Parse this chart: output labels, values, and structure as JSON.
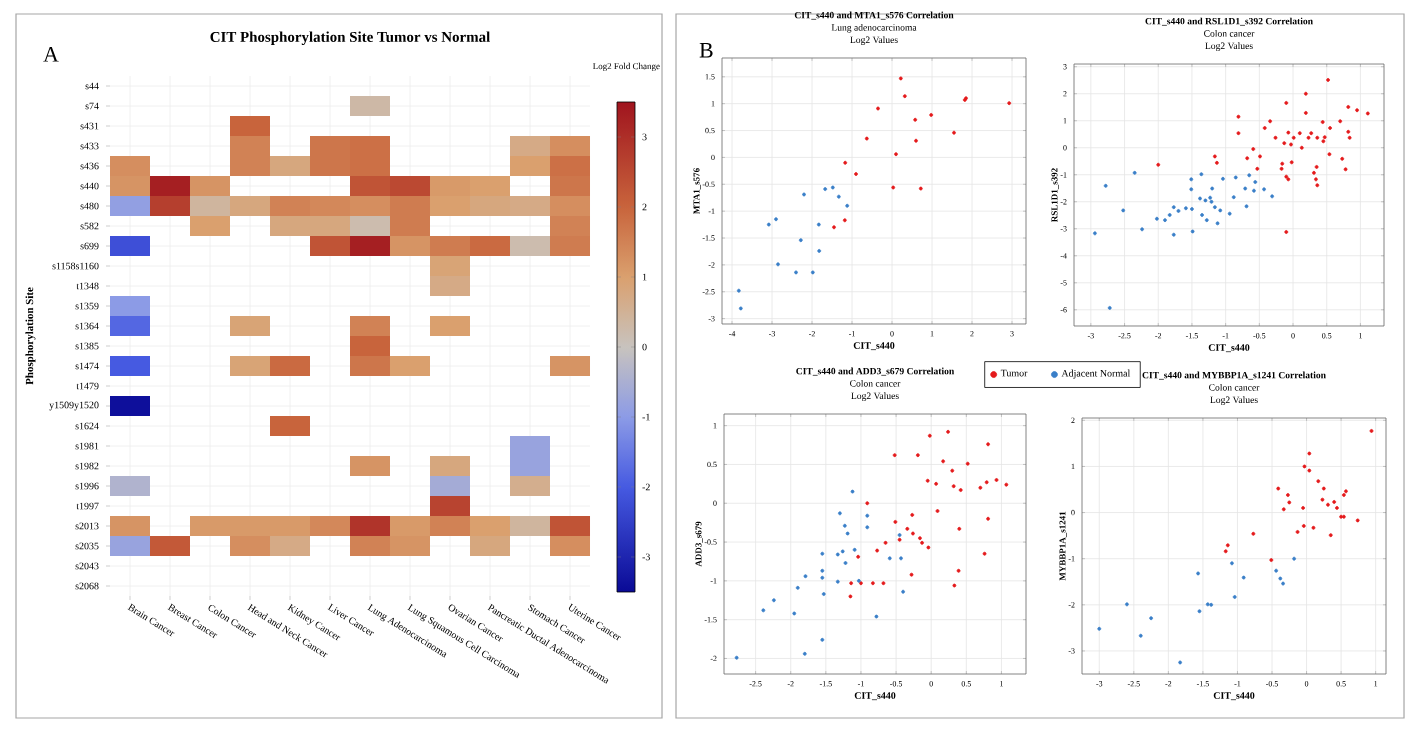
{
  "chart_data": [
    {
      "type": "heatmap",
      "title": "CIT Phosphorylation Site Tumor vs Normal",
      "ylabel": "Phosphorylation Site",
      "clabel": "Log2 Fold Change",
      "annotations": [
        "A"
      ],
      "categories": [
        "Brain Cancer",
        "Breast Cancer",
        "Colon Cancer",
        "Head and Neck Cancer",
        "Kidney Cancer",
        "Liver Cancer",
        "Lung Adenocarcinoma",
        "Lung Squamous Cell Carcinoma",
        "Ovarian Cancer",
        "Pancreatic Ductal Adenocarcinoma",
        "Stomach Cancer",
        "Uterine Cancer"
      ],
      "y_categories": [
        "s44",
        "s74",
        "s431",
        "s433",
        "s436",
        "s440",
        "s480",
        "s582",
        "s699",
        "s1158s1160",
        "t1348",
        "s1359",
        "s1364",
        "s1385",
        "s1474",
        "t1479",
        "y1509y1520",
        "s1624",
        "s1981",
        "s1982",
        "s1996",
        "t1997",
        "s2013",
        "s2035",
        "s2043",
        "s2068"
      ],
      "cells": [
        [
          null,
          null,
          null,
          null,
          null,
          null,
          null,
          null,
          null,
          null,
          null,
          null
        ],
        [
          null,
          null,
          null,
          null,
          null,
          null,
          0.3,
          null,
          null,
          null,
          null,
          null
        ],
        [
          null,
          null,
          null,
          2.0,
          null,
          null,
          null,
          null,
          null,
          null,
          null,
          null
        ],
        [
          null,
          null,
          null,
          1.5,
          null,
          1.7,
          1.8,
          null,
          null,
          null,
          0.7,
          1.3
        ],
        [
          1.3,
          null,
          null,
          1.5,
          0.8,
          1.7,
          1.8,
          null,
          null,
          null,
          1.0,
          1.8
        ],
        [
          1.2,
          3.3,
          1.2,
          null,
          null,
          null,
          2.3,
          2.5,
          1.1,
          1.0,
          null,
          1.7
        ],
        [
          -0.9,
          2.7,
          0.4,
          0.8,
          1.5,
          1.4,
          1.3,
          1.6,
          1.0,
          0.8,
          0.7,
          1.3
        ],
        [
          null,
          null,
          1.0,
          null,
          0.8,
          0.8,
          0.2,
          1.6,
          null,
          null,
          null,
          1.5
        ],
        [
          -2.2,
          null,
          null,
          null,
          null,
          2.3,
          3.3,
          1.2,
          1.6,
          1.9,
          0.2,
          1.6
        ],
        [
          null,
          null,
          null,
          null,
          null,
          null,
          null,
          null,
          0.9,
          null,
          null,
          null
        ],
        [
          null,
          null,
          null,
          null,
          null,
          null,
          null,
          null,
          0.7,
          null,
          null,
          null
        ],
        [
          -1.0,
          null,
          null,
          null,
          null,
          null,
          null,
          null,
          null,
          null,
          null,
          null
        ],
        [
          -1.8,
          null,
          null,
          0.9,
          null,
          null,
          1.5,
          null,
          1.0,
          null,
          null,
          null
        ],
        [
          null,
          null,
          null,
          null,
          null,
          null,
          2.0,
          null,
          null,
          null,
          null,
          null
        ],
        [
          -2.0,
          null,
          null,
          0.9,
          1.9,
          null,
          1.7,
          1.0,
          null,
          null,
          null,
          1.2
        ],
        [
          null,
          null,
          null,
          null,
          null,
          null,
          null,
          null,
          null,
          null,
          null,
          null
        ],
        [
          -3.4,
          null,
          null,
          null,
          null,
          null,
          null,
          null,
          null,
          null,
          null,
          null
        ],
        [
          null,
          null,
          null,
          null,
          2.0,
          null,
          null,
          null,
          null,
          null,
          null,
          null
        ],
        [
          null,
          null,
          null,
          null,
          null,
          null,
          null,
          null,
          null,
          null,
          -0.8,
          null
        ],
        [
          null,
          null,
          null,
          null,
          null,
          null,
          1.2,
          null,
          0.8,
          null,
          -0.8,
          null
        ],
        [
          -0.4,
          null,
          null,
          null,
          null,
          null,
          null,
          null,
          -0.6,
          null,
          0.6,
          null
        ],
        [
          null,
          null,
          null,
          null,
          null,
          null,
          null,
          null,
          2.6,
          null,
          null,
          null
        ],
        [
          1.2,
          null,
          1.1,
          1.1,
          1.1,
          1.4,
          2.9,
          1.1,
          1.5,
          1.0,
          0.4,
          2.3
        ],
        [
          -0.8,
          2.2,
          null,
          1.3,
          0.7,
          null,
          1.5,
          1.2,
          null,
          0.8,
          null,
          1.3
        ],
        [
          null,
          null,
          null,
          null,
          null,
          null,
          null,
          null,
          null,
          null,
          null,
          null
        ],
        [
          null,
          null,
          null,
          null,
          null,
          null,
          null,
          null,
          null,
          null,
          null,
          null
        ]
      ],
      "clim": [
        -3.5,
        3.5
      ],
      "cticks": [
        -3,
        -2,
        -1,
        0,
        1,
        2,
        3
      ],
      "grid": true
    },
    {
      "type": "scatter",
      "title": "CIT_s440 and MTA1_s576 Correlation",
      "subtitle": "Lung adenocarcinoma",
      "annotations": [
        "Log2 Values",
        "B"
      ],
      "xlabel": "CIT_s440",
      "ylabel": "MTA1_s576",
      "xlim": [
        -4.25,
        3.35
      ],
      "ylim": [
        -3.1,
        1.85
      ],
      "xticks": [
        -4,
        -3,
        -2,
        -1,
        0,
        1,
        2,
        3
      ],
      "yticks": [
        -3,
        -2.5,
        -2,
        -1.5,
        -1,
        -0.5,
        0,
        0.5,
        1,
        1.5
      ],
      "grid": true,
      "legend": "bottom",
      "series": [
        {
          "name": "Tumor",
          "color": "#e41a1c",
          "x": [
            0.22,
            0.32,
            -0.35,
            1.85,
            1.82,
            2.93,
            0.58,
            0.98,
            0.6,
            1.55,
            -0.63,
            0.1,
            -1.17,
            -0.9,
            0.03,
            0.72,
            -1.18,
            -1.45
          ],
          "values": [
            1.47,
            1.14,
            0.91,
            1.1,
            1.07,
            1.01,
            0.7,
            0.79,
            0.31,
            0.46,
            0.35,
            0.06,
            -0.1,
            -0.31,
            -0.56,
            -0.58,
            -1.17,
            -1.3
          ]
        },
        {
          "name": "Adjacent Normal",
          "color": "#3a7fc8",
          "x": [
            -1.48,
            -1.67,
            -2.2,
            -1.33,
            -1.12,
            -2.9,
            -3.08,
            -1.83,
            -2.28,
            -1.82,
            -2.85,
            -2.4,
            -1.98,
            -3.83,
            -3.78
          ],
          "values": [
            -0.56,
            -0.59,
            -0.69,
            -0.73,
            -0.9,
            -1.15,
            -1.25,
            -1.25,
            -1.54,
            -1.74,
            -1.99,
            -2.14,
            -2.14,
            -2.48,
            -2.81
          ]
        }
      ]
    },
    {
      "type": "scatter",
      "title": "CIT_s440 and RSL1D1_s392 Correlation",
      "subtitle": "Colon cancer",
      "annotations": [
        "Log2 Values"
      ],
      "xlabel": "CIT_s440",
      "ylabel": "RSL1D1_s392",
      "xlim": [
        -3.25,
        1.35
      ],
      "ylim": [
        -6.6,
        3.1
      ],
      "xticks": [
        -3,
        -2.5,
        -2,
        -1.5,
        -1,
        -0.5,
        0,
        0.5,
        1
      ],
      "yticks": [
        -6,
        -5,
        -4,
        -3,
        -2,
        -1,
        0,
        1,
        2,
        3
      ],
      "grid": true,
      "series": [
        {
          "color": "#e41a1c",
          "x": [
            0.52,
            0.19,
            -0.1,
            0.82,
            0.95,
            1.11,
            0.19,
            -0.81,
            -0.34,
            0.44,
            0.7,
            -0.42,
            0.55,
            -0.81,
            -0.07,
            0.1,
            0.27,
            0.23,
            0.36,
            0.47,
            0.82,
            0.84,
            0.01,
            -0.26,
            -0.03,
            0.45,
            -0.13,
            0.13,
            -0.59,
            0.54,
            -1.16,
            -0.49,
            -0.68,
            -1.13,
            -2.0,
            -0.02,
            -0.16,
            0.73,
            -0.53,
            -0.17,
            0.35,
            0.78,
            0.31,
            -0.1,
            -0.07,
            0.34,
            0.36,
            -0.1
          ],
          "values": [
            2.51,
            2.0,
            1.66,
            1.51,
            1.39,
            1.27,
            1.29,
            1.15,
            0.98,
            0.95,
            0.98,
            0.73,
            0.73,
            0.54,
            0.56,
            0.54,
            0.54,
            0.37,
            0.37,
            0.39,
            0.59,
            0.37,
            0.37,
            0.37,
            0.12,
            0.24,
            0.17,
            0.0,
            -0.05,
            -0.24,
            -0.32,
            -0.32,
            -0.39,
            -0.56,
            -0.63,
            -0.54,
            -0.59,
            -0.41,
            -0.78,
            -0.78,
            -0.71,
            -0.8,
            -0.93,
            -1.07,
            -1.17,
            -1.17,
            -1.39,
            -3.12
          ]
        },
        {
          "color": "#3a7fc8",
          "x": [
            -2.35,
            -2.78,
            -1.51,
            -1.36,
            -1.51,
            -1.04,
            -0.85,
            -0.65,
            -0.56,
            -0.71,
            -0.58,
            -0.88,
            -1.2,
            -0.43,
            -0.31,
            -1.23,
            -1.21,
            -1.16,
            -1.08,
            -0.69,
            -0.94,
            -1.35,
            -1.59,
            -1.7,
            -1.83,
            -1.77,
            -1.5,
            -1.3,
            -1.38,
            -2.52,
            -2.02,
            -1.9,
            -2.24,
            -1.77,
            -1.49,
            -1.28,
            -1.12,
            -2.94,
            -2.72
          ],
          "values": [
            -0.93,
            -1.41,
            -1.17,
            -0.98,
            -1.54,
            -1.15,
            -1.1,
            -1.02,
            -1.27,
            -1.51,
            -1.59,
            -1.83,
            -1.51,
            -1.54,
            -1.8,
            -1.85,
            -2.0,
            -2.2,
            -2.32,
            -2.17,
            -2.44,
            -2.49,
            -2.24,
            -2.34,
            -2.49,
            -2.2,
            -2.27,
            -1.95,
            -1.88,
            -2.32,
            -2.63,
            -2.68,
            -3.02,
            -3.22,
            -3.1,
            -2.68,
            -2.8,
            -3.17,
            -5.93
          ]
        }
      ]
    },
    {
      "type": "scatter",
      "title": "CIT_s440 and ADD3_s679 Correlation",
      "subtitle": "Colon cancer",
      "annotations": [
        "Log2 Values"
      ],
      "xlabel": "CIT_s440",
      "ylabel": "ADD3_s679",
      "xlim": [
        -2.95,
        1.35
      ],
      "ylim": [
        -2.2,
        1.15
      ],
      "xticks": [
        -2.5,
        -2,
        -1.5,
        -1,
        -0.5,
        0,
        0.5,
        1
      ],
      "yticks": [
        -2,
        -1.5,
        -1,
        -0.5,
        0,
        0.5,
        1
      ],
      "grid": true,
      "series": [
        {
          "color": "#e41a1c",
          "x": [
            0.24,
            -0.02,
            0.81,
            -0.52,
            -0.19,
            0.52,
            0.17,
            0.3,
            -0.05,
            0.07,
            0.32,
            0.42,
            0.7,
            0.79,
            0.93,
            1.07,
            0.09,
            -0.91,
            -0.27,
            0.81,
            -0.51,
            0.4,
            -0.34,
            -0.26,
            -0.16,
            -0.13,
            -0.04,
            -0.45,
            -0.65,
            -0.77,
            -1.04,
            0.76,
            0.39,
            -0.28,
            0.33,
            -0.68,
            -0.83,
            -1.0,
            -1.14,
            -1.15
          ],
          "values": [
            0.92,
            0.87,
            0.76,
            0.62,
            0.62,
            0.51,
            0.54,
            0.42,
            0.29,
            0.25,
            0.22,
            0.17,
            0.2,
            0.27,
            0.3,
            0.24,
            -0.1,
            0.0,
            -0.15,
            -0.2,
            -0.24,
            -0.33,
            -0.33,
            -0.39,
            -0.45,
            -0.51,
            -0.57,
            -0.47,
            -0.51,
            -0.61,
            -0.69,
            -0.65,
            -0.87,
            -0.92,
            -1.06,
            -1.03,
            -1.03,
            -1.03,
            -1.03,
            -1.2
          ]
        },
        {
          "color": "#3a7fc8",
          "x": [
            -1.12,
            -1.3,
            -0.91,
            -1.23,
            -0.91,
            -0.45,
            -1.19,
            -1.09,
            -1.26,
            -1.33,
            -1.55,
            -0.59,
            -0.43,
            -1.22,
            -1.55,
            -1.33,
            -1.55,
            -1.79,
            -1.03,
            -1.9,
            -2.24,
            -2.39,
            -0.4,
            -1.53,
            -1.95,
            -0.78,
            -1.55,
            -1.8,
            -2.77
          ],
          "values": [
            0.15,
            -0.13,
            -0.16,
            -0.29,
            -0.31,
            -0.41,
            -0.39,
            -0.6,
            -0.62,
            -0.66,
            -0.65,
            -0.71,
            -0.71,
            -0.77,
            -0.87,
            -1.01,
            -0.96,
            -0.94,
            -1.0,
            -1.09,
            -1.25,
            -1.38,
            -1.14,
            -1.17,
            -1.42,
            -1.46,
            -1.76,
            -1.94,
            -1.99
          ]
        }
      ]
    },
    {
      "type": "scatter",
      "title": "CIT_s440 and MYBBP1A_s1241 Correlation",
      "subtitle": "Colon cancer",
      "annotations": [
        "Log2 Values"
      ],
      "xlabel": "CIT_s440",
      "ylabel": "MYBBP1A_s1241",
      "xlim": [
        -3.25,
        1.15
      ],
      "ylim": [
        -3.5,
        2.05
      ],
      "xticks": [
        -3,
        -2.5,
        -2,
        -1.5,
        -1,
        -0.5,
        0,
        0.5,
        1
      ],
      "yticks": [
        -3,
        -2,
        -1,
        0,
        1,
        2
      ],
      "grid": true,
      "series": [
        {
          "color": "#e41a1c",
          "x": [
            0.94,
            0.04,
            -0.03,
            0.04,
            0.17,
            0.25,
            0.57,
            0.54,
            -0.41,
            -0.27,
            0.23,
            0.4,
            0.31,
            0.44,
            -0.25,
            -0.33,
            -0.05,
            0.5,
            0.54,
            0.74,
            -0.04,
            0.1,
            -0.13,
            0.35,
            -0.77,
            -1.14,
            -1.17,
            -0.51
          ],
          "values": [
            1.77,
            1.28,
            1.0,
            0.91,
            0.68,
            0.52,
            0.46,
            0.38,
            0.52,
            0.38,
            0.28,
            0.23,
            0.17,
            0.1,
            0.22,
            0.07,
            0.1,
            -0.09,
            -0.09,
            -0.17,
            -0.29,
            -0.33,
            -0.42,
            -0.49,
            -0.46,
            -0.71,
            -0.84,
            -1.03
          ]
        },
        {
          "color": "#3a7fc8",
          "x": [
            -0.18,
            -1.08,
            -0.44,
            -1.57,
            -0.91,
            -0.38,
            -0.34,
            -1.04,
            -1.43,
            -1.38,
            -2.6,
            -1.55,
            -2.25,
            -3.0,
            -2.4,
            -1.83
          ],
          "values": [
            -1.0,
            -1.1,
            -1.26,
            -1.32,
            -1.41,
            -1.43,
            -1.54,
            -1.83,
            -1.99,
            -2.0,
            -1.99,
            -2.14,
            -2.29,
            -2.52,
            -2.67,
            -3.25
          ]
        }
      ]
    }
  ]
}
